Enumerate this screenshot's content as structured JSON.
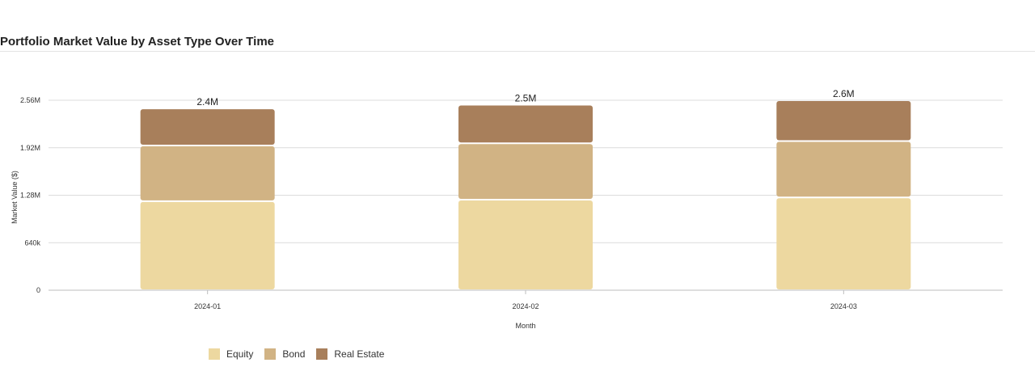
{
  "chart_data": {
    "type": "bar",
    "stacked": true,
    "title": "Portfolio Market Value by Asset Type Over Time",
    "xlabel": "Month",
    "ylabel": "Market Value ($)",
    "categories": [
      "2024-01",
      "2024-02",
      "2024-03"
    ],
    "series": [
      {
        "name": "Equity",
        "color": "#edd8a0",
        "values": [
          1200000,
          1220000,
          1250000
        ]
      },
      {
        "name": "Bond",
        "color": "#d1b384",
        "values": [
          750000,
          760000,
          760000
        ]
      },
      {
        "name": "Real Estate",
        "color": "#a87f5b",
        "values": [
          500000,
          520000,
          550000
        ]
      }
    ],
    "totals": [
      "2.4M",
      "2.5M",
      "2.6M"
    ],
    "y_ticks": [
      {
        "value": 0,
        "label": "0"
      },
      {
        "value": 640000,
        "label": "640k"
      },
      {
        "value": 1280000,
        "label": "1.28M"
      },
      {
        "value": 1920000,
        "label": "1.92M"
      },
      {
        "value": 2560000,
        "label": "2.56M"
      }
    ],
    "ylim": [
      0,
      2560000
    ],
    "grid": true,
    "legend_position": "bottom-left"
  }
}
